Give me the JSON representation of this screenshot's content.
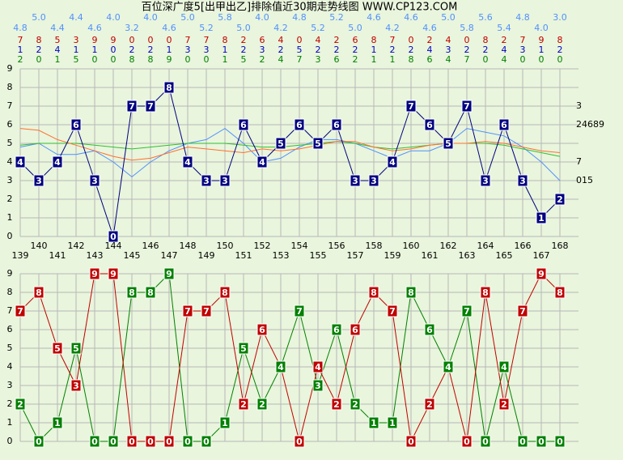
{
  "chart_data": [
    {
      "type": "line",
      "title": "百位深广度5[出甲出乙]排除值近30期走势线图 WWW.CP123.COM",
      "x": [
        139,
        140,
        141,
        142,
        143,
        144,
        145,
        146,
        147,
        148,
        149,
        150,
        151,
        152,
        153,
        154,
        155,
        156,
        157,
        158,
        159,
        160,
        161,
        162,
        163,
        164,
        165,
        166,
        167,
        168
      ],
      "xlim": [
        138,
        169
      ],
      "ylim": [
        0,
        9
      ],
      "yticks": [
        0,
        1,
        2,
        3,
        4,
        5,
        6,
        7,
        8,
        9
      ],
      "grid": true,
      "series": [
        {
          "color": "#000080",
          "values": [
            4,
            3,
            4,
            6,
            3,
            0,
            7,
            7,
            8,
            4,
            3,
            3,
            6,
            4,
            5,
            6,
            5,
            6,
            3,
            3,
            4,
            7,
            6,
            5,
            7,
            3,
            6,
            3,
            1,
            2
          ]
        },
        {
          "color": "#ff7030",
          "values": [
            5.8,
            5.7,
            5.2,
            4.9,
            4.6,
            4.3,
            4.1,
            4.2,
            4.5,
            4.8,
            4.7,
            4.6,
            4.5,
            4.7,
            4.6,
            4.7,
            4.9,
            5.1,
            5.1,
            4.8,
            4.6,
            4.7,
            4.9,
            5.0,
            5.0,
            5.1,
            5.0,
            4.8,
            4.6,
            4.5
          ]
        },
        {
          "color": "#30c030",
          "values": [
            4.9,
            5.0,
            5.0,
            5.0,
            4.9,
            4.8,
            4.7,
            4.8,
            4.9,
            5.0,
            5.0,
            5.0,
            4.9,
            4.8,
            4.8,
            4.9,
            5.0,
            5.1,
            5.0,
            4.8,
            4.7,
            4.8,
            4.9,
            5.0,
            5.0,
            5.0,
            4.9,
            4.7,
            4.5,
            4.3
          ]
        },
        {
          "color": "#5090ff",
          "values": [
            4.8,
            5.0,
            4.4,
            4.4,
            4.6,
            4.0,
            3.2,
            4.0,
            4.6,
            5.0,
            5.2,
            5.8,
            5.0,
            4.0,
            4.2,
            4.8,
            5.2,
            5.2,
            5.0,
            4.6,
            4.2,
            4.6,
            4.6,
            5.0,
            5.8,
            5.6,
            5.4,
            4.8,
            4.0,
            3.0
          ],
          "value_labels": [
            "4.8",
            "5.0",
            "4.4",
            "4.4",
            "4.6",
            "4.0",
            "3.2",
            "4.0",
            "4.6",
            "5.0",
            "5.2",
            "5.8",
            "5.0",
            "4.0",
            "4.2",
            "4.8",
            "5.2",
            "5.2",
            "5.0",
            "4.6",
            "4.2",
            "4.6",
            "4.6",
            "5.0",
            "5.8",
            "5.6",
            "5.4",
            "4.8",
            "4.0",
            "3.0"
          ]
        }
      ],
      "middle_row": {
        "color": "#0000c0",
        "values": [
          1,
          2,
          4,
          1,
          1,
          0,
          2,
          2,
          1,
          3,
          3,
          1,
          2,
          3,
          2,
          5,
          2,
          2,
          2,
          1,
          2,
          2,
          4,
          3,
          2,
          2,
          4,
          3,
          1,
          2
        ]
      },
      "annotations": [
        {
          "value": 7,
          "label": "3"
        },
        {
          "value": 6,
          "label": "24689"
        },
        {
          "value": 4,
          "label": "7"
        },
        {
          "value": 3,
          "label": "015"
        }
      ]
    },
    {
      "type": "line",
      "xlim": [
        138,
        169
      ],
      "ylim": [
        0,
        9
      ],
      "yticks": [
        0,
        1,
        2,
        3,
        4,
        5,
        6,
        7,
        8,
        9
      ],
      "grid": true,
      "series": [
        {
          "color": "#c00000",
          "values": [
            7,
            8,
            5,
            3,
            9,
            9,
            0,
            0,
            0,
            7,
            7,
            8,
            2,
            6,
            4,
            0,
            4,
            2,
            6,
            8,
            7,
            0,
            2,
            4,
            0,
            8,
            2,
            7,
            9,
            8
          ]
        },
        {
          "color": "#008000",
          "values": [
            2,
            0,
            1,
            5,
            0,
            0,
            8,
            8,
            9,
            0,
            0,
            1,
            5,
            2,
            4,
            7,
            3,
            6,
            2,
            1,
            1,
            8,
            6,
            4,
            7,
            0,
            4,
            0,
            0,
            0
          ]
        }
      ]
    }
  ]
}
